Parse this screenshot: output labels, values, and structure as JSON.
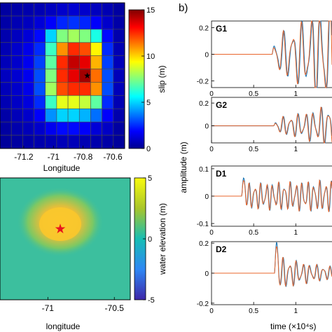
{
  "panel_label": "b)",
  "chart_data": [
    {
      "type": "heatmap",
      "xlabel": "Longitude",
      "x_ticks": [
        -71.2,
        -71,
        -70.8,
        -70.6
      ],
      "xlim": [
        -71.36,
        -70.52
      ],
      "rows": 11,
      "cols": 11,
      "values": [
        [
          0.3,
          0.4,
          0.5,
          0.6,
          0.8,
          1.0,
          1.1,
          1.0,
          0.8,
          0.6,
          0.3
        ],
        [
          0.4,
          0.6,
          0.8,
          1.2,
          1.8,
          2.4,
          2.6,
          2.4,
          1.8,
          1.0,
          0.4
        ],
        [
          0.5,
          0.8,
          1.2,
          2.0,
          5.0,
          7.5,
          8.0,
          7.5,
          6.0,
          2.0,
          0.5
        ],
        [
          0.6,
          1.0,
          1.5,
          2.5,
          6.5,
          11.0,
          12.5,
          12.0,
          9.5,
          2.5,
          0.6
        ],
        [
          0.7,
          1.0,
          1.6,
          2.8,
          7.0,
          12.5,
          14.0,
          13.5,
          10.5,
          2.8,
          0.7
        ],
        [
          0.8,
          1.1,
          1.6,
          3.0,
          7.5,
          12.5,
          13.5,
          14.5,
          11.5,
          3.0,
          0.7
        ],
        [
          0.7,
          1.0,
          1.5,
          3.0,
          8.0,
          12.0,
          12.5,
          12.5,
          11.0,
          3.0,
          0.7
        ],
        [
          0.6,
          0.9,
          1.3,
          2.5,
          6.5,
          9.0,
          9.0,
          8.5,
          7.0,
          2.5,
          0.6
        ],
        [
          0.4,
          0.7,
          1.0,
          1.8,
          4.0,
          5.0,
          5.0,
          4.5,
          3.5,
          1.8,
          0.5
        ],
        [
          0.3,
          0.5,
          0.7,
          1.0,
          1.6,
          2.0,
          2.0,
          1.8,
          1.2,
          0.9,
          0.3
        ],
        [
          0.2,
          0.3,
          0.4,
          0.5,
          0.6,
          0.7,
          0.7,
          0.6,
          0.5,
          0.4,
          0.2
        ]
      ],
      "epicenter": {
        "lon": -70.8,
        "row": 5.5
      },
      "colorbar": {
        "label": "slip (m)",
        "range": [
          0,
          15
        ],
        "ticks": [
          0,
          5,
          10,
          15
        ]
      }
    },
    {
      "type": "heatmap",
      "xlabel": "longitude",
      "x_ticks": [
        -71,
        -70.5
      ],
      "xlim": [
        -71.36,
        -70.38
      ],
      "source_center": {
        "lon": -70.9,
        "frac_y": 0.36
      },
      "peak_value": 2.6,
      "background_value": 0.3,
      "colorbar": {
        "label": "water elevation (m)",
        "range": [
          -5,
          5
        ],
        "ticks": [
          -5,
          0,
          5
        ]
      }
    },
    {
      "type": "line",
      "xlabel": "time (×10⁴s)",
      "ylabel": "amplitude (m)",
      "x_ticks": [
        0,
        0.5,
        1
      ],
      "xlim": [
        0,
        1.43
      ],
      "series_colors": [
        "#1f77b4",
        "#e9652b"
      ],
      "panels": [
        {
          "label": "G1",
          "ylim": [
            -0.25,
            0.25
          ],
          "y_ticks": [
            -0.2,
            0,
            0.2
          ],
          "onset": 0.72,
          "amp": 0.1,
          "period": 0.11,
          "growth": 1.8
        },
        {
          "label": "G2",
          "ylim": [
            -0.15,
            0.25
          ],
          "y_ticks": [
            0,
            0.2
          ],
          "onset": 0.74,
          "amp": 0.05,
          "period": 0.09,
          "growth": 1.6
        },
        {
          "label": "D1",
          "ylim": [
            -0.11,
            0.11
          ],
          "y_ticks": [
            -0.1,
            0,
            0.1
          ],
          "onset": 0.36,
          "amp": 0.035,
          "period": 0.07,
          "growth": 0.2,
          "spike": 0.055
        },
        {
          "label": "D2",
          "ylim": [
            -0.21,
            0.21
          ],
          "y_ticks": [
            -0.2,
            0,
            0.2
          ],
          "onset": 0.75,
          "amp": 0.09,
          "period": 0.08,
          "growth": -1.5,
          "spike": 0.17
        }
      ]
    }
  ]
}
